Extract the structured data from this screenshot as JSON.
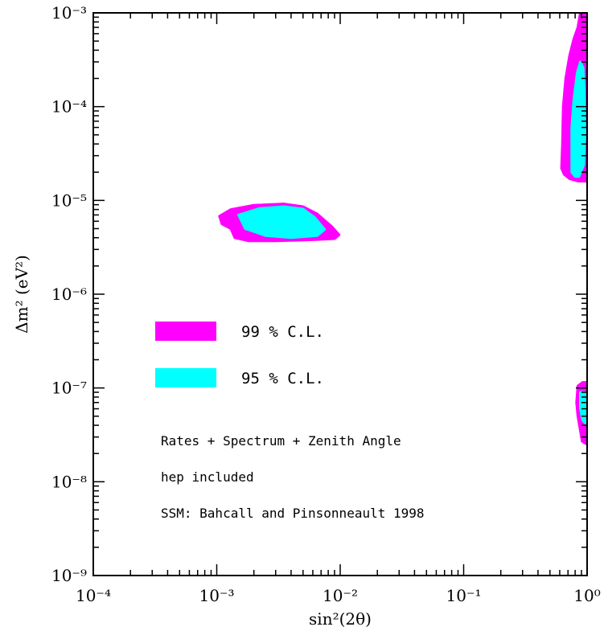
{
  "chart_data": {
    "type": "area",
    "x_scale": "log",
    "y_scale": "log",
    "xlim": [
      0.0001,
      1
    ],
    "ylim": [
      1e-09,
      0.001
    ],
    "xlabel": "sin²(2θ)",
    "ylabel": "Δm² (eV²)",
    "x_ticks": [
      {
        "value": 0.0001,
        "label": "10⁻⁴"
      },
      {
        "value": 0.001,
        "label": "10⁻³"
      },
      {
        "value": 0.01,
        "label": "10⁻²"
      },
      {
        "value": 0.1,
        "label": "10⁻¹"
      },
      {
        "value": 1,
        "label": "10⁰"
      }
    ],
    "y_ticks": [
      {
        "value": 1e-09,
        "label": "10⁻⁹"
      },
      {
        "value": 1e-08,
        "label": "10⁻⁸"
      },
      {
        "value": 1e-07,
        "label": "10⁻⁷"
      },
      {
        "value": 1e-06,
        "label": "10⁻⁶"
      },
      {
        "value": 1e-05,
        "label": "10⁻⁵"
      },
      {
        "value": 0.0001,
        "label": "10⁻⁴"
      },
      {
        "value": 0.001,
        "label": "10⁻³"
      }
    ],
    "grid": false,
    "legend_placement": "middle-left",
    "series": [
      {
        "name": "99 % C.L.",
        "color": "#ff00ff",
        "regions": [
          {
            "id": "smw-99",
            "points": [
              [
                0.00105,
                6.8e-06
              ],
              [
                0.0013,
                8e-06
              ],
              [
                0.002,
                8.9e-06
              ],
              [
                0.0035,
                9.2e-06
              ],
              [
                0.005,
                8.6e-06
              ],
              [
                0.0065,
                7.2e-06
              ],
              [
                0.0085,
                5.3e-06
              ],
              [
                0.0098,
                4.3e-06
              ],
              [
                0.009,
                3.9e-06
              ],
              [
                0.006,
                3.8e-06
              ],
              [
                0.003,
                3.7e-06
              ],
              [
                0.0018,
                3.7e-06
              ],
              [
                0.0014,
                4e-06
              ],
              [
                0.0013,
                5e-06
              ],
              [
                0.0011,
                5.6e-06
              ]
            ]
          },
          {
            "id": "lma-99",
            "points": [
              [
                0.62,
                2.2e-05
              ],
              [
                0.63,
                4e-05
              ],
              [
                0.64,
                0.0001
              ],
              [
                0.67,
                0.0002
              ],
              [
                0.72,
                0.00035
              ],
              [
                0.78,
                0.00053
              ],
              [
                0.84,
                0.0007
              ],
              [
                0.88,
                0.001
              ],
              [
                1.0,
                0.001
              ],
              [
                1.0,
                1.6e-05
              ],
              [
                0.85,
                1.6e-05
              ],
              [
                0.72,
                1.7e-05
              ],
              [
                0.65,
                1.9e-05
              ]
            ]
          },
          {
            "id": "low-99",
            "points": [
              [
                0.84,
                1.05e-07
              ],
              [
                0.82,
                7e-08
              ],
              [
                0.84,
                5e-08
              ],
              [
                0.88,
                3.5e-08
              ],
              [
                0.91,
                2.7e-08
              ],
              [
                1.0,
                2.5e-08
              ],
              [
                1.0,
                1.15e-07
              ],
              [
                0.92,
                1.15e-07
              ]
            ]
          }
        ]
      },
      {
        "name": "95 % C.L.",
        "color": "#00ffff",
        "regions": [
          {
            "id": "smw-95",
            "points": [
              [
                0.0015,
                7e-06
              ],
              [
                0.0022,
                8.2e-06
              ],
              [
                0.0035,
                8.6e-06
              ],
              [
                0.005,
                8.1e-06
              ],
              [
                0.0062,
                6.6e-06
              ],
              [
                0.0075,
                4.9e-06
              ],
              [
                0.0065,
                4.2e-06
              ],
              [
                0.004,
                4e-06
              ],
              [
                0.0025,
                4.2e-06
              ],
              [
                0.0017,
                5e-06
              ]
            ]
          },
          {
            "id": "lma-95",
            "points": [
              [
                0.75,
                2e-05
              ],
              [
                0.75,
                6e-05
              ],
              [
                0.78,
                0.00012
              ],
              [
                0.83,
                0.00023
              ],
              [
                0.88,
                0.0003
              ],
              [
                0.93,
                0.00026
              ],
              [
                0.95,
                0.00015
              ],
              [
                0.96,
                5e-05
              ],
              [
                0.94,
                2.4e-05
              ],
              [
                0.86,
                1.8e-05
              ],
              [
                0.8,
                1.8e-05
              ]
            ]
          },
          {
            "id": "low-95",
            "points": [
              [
                0.88,
                9e-08
              ],
              [
                0.88,
                6e-08
              ],
              [
                0.92,
                4.5e-08
              ],
              [
                0.97,
                4.2e-08
              ],
              [
                0.98,
                6e-08
              ],
              [
                0.96,
                9e-08
              ]
            ]
          }
        ]
      }
    ],
    "annotations": [
      "Rates + Spectrum + Zenith Angle",
      "hep included",
      "SSM: Bahcall and Pinsonneault 1998"
    ]
  }
}
